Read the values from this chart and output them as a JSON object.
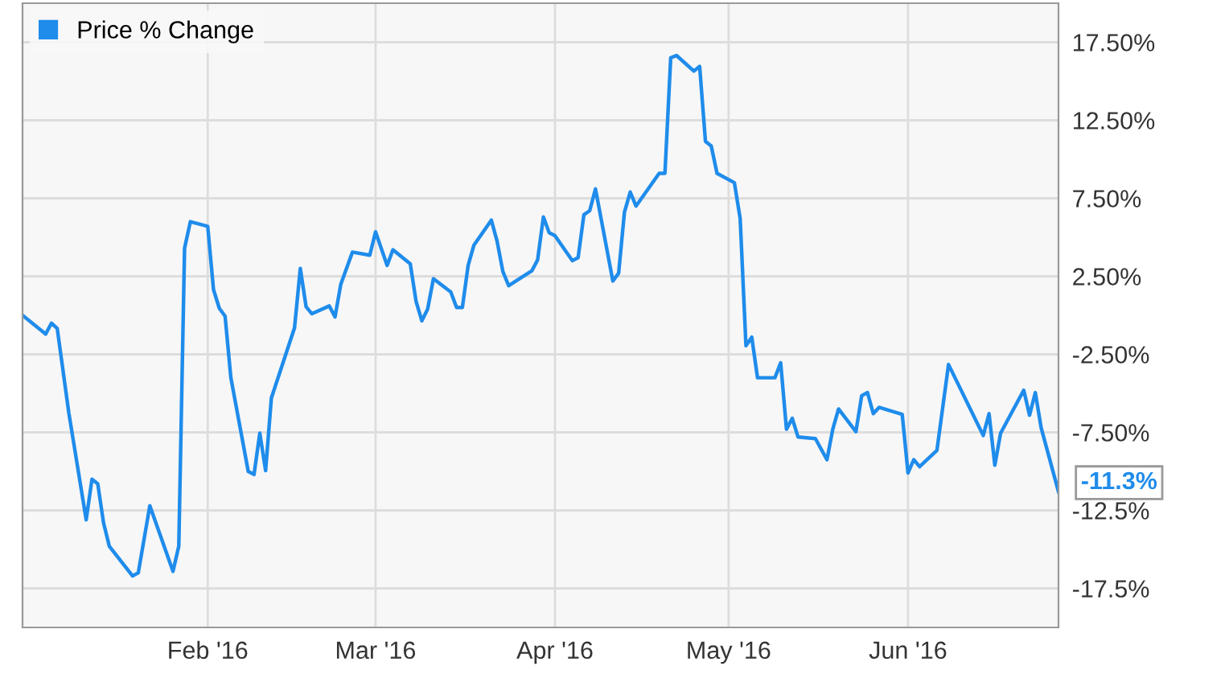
{
  "chart_data": {
    "type": "line",
    "series": [
      {
        "name": "Price % Change",
        "color": "#1f8ceb",
        "x": [
          "2015-12-31",
          "2016-01-04",
          "2016-01-05",
          "2016-01-06",
          "2016-01-08",
          "2016-01-11",
          "2016-01-12",
          "2016-01-13",
          "2016-01-14",
          "2016-01-15",
          "2016-01-19",
          "2016-01-20",
          "2016-01-22",
          "2016-01-26",
          "2016-01-27",
          "2016-01-28",
          "2016-01-29",
          "2016-02-01",
          "2016-02-02",
          "2016-02-03",
          "2016-02-04",
          "2016-02-05",
          "2016-02-08",
          "2016-02-09",
          "2016-02-10",
          "2016-02-11",
          "2016-02-12",
          "2016-02-16",
          "2016-02-17",
          "2016-02-18",
          "2016-02-19",
          "2016-02-22",
          "2016-02-23",
          "2016-02-24",
          "2016-02-26",
          "2016-02-29",
          "2016-03-01",
          "2016-03-03",
          "2016-03-04",
          "2016-03-07",
          "2016-03-08",
          "2016-03-09",
          "2016-03-10",
          "2016-03-11",
          "2016-03-14",
          "2016-03-15",
          "2016-03-16",
          "2016-03-17",
          "2016-03-18",
          "2016-03-21",
          "2016-03-22",
          "2016-03-23",
          "2016-03-24",
          "2016-03-28",
          "2016-03-29",
          "2016-03-30",
          "2016-03-31",
          "2016-04-01",
          "2016-04-04",
          "2016-04-05",
          "2016-04-06",
          "2016-04-07",
          "2016-04-08",
          "2016-04-11",
          "2016-04-12",
          "2016-04-13",
          "2016-04-14",
          "2016-04-15",
          "2016-04-19",
          "2016-04-20",
          "2016-04-21",
          "2016-04-22",
          "2016-04-25",
          "2016-04-26",
          "2016-04-27",
          "2016-04-28",
          "2016-04-29",
          "2016-05-02",
          "2016-05-03",
          "2016-05-04",
          "2016-05-05",
          "2016-05-06",
          "2016-05-09",
          "2016-05-10",
          "2016-05-11",
          "2016-05-12",
          "2016-05-13",
          "2016-05-16",
          "2016-05-18",
          "2016-05-19",
          "2016-05-20",
          "2016-05-23",
          "2016-05-24",
          "2016-05-25",
          "2016-05-26",
          "2016-05-27",
          "2016-05-31",
          "2016-06-01",
          "2016-06-02",
          "2016-06-03",
          "2016-06-06",
          "2016-06-08",
          "2016-06-14",
          "2016-06-15",
          "2016-06-16",
          "2016-06-17",
          "2016-06-21",
          "2016-06-22",
          "2016-06-23",
          "2016-06-24",
          "2016-06-27"
        ],
        "values": [
          0.0,
          -1.2,
          -0.5,
          -0.85,
          -6.25,
          -13.1,
          -10.5,
          -10.8,
          -13.3,
          -14.8,
          -16.7,
          -16.5,
          -12.2,
          -16.4,
          -14.8,
          4.3,
          6.0,
          5.7,
          1.65,
          0.45,
          -0.05,
          -4.0,
          -10.0,
          -10.2,
          -7.55,
          -9.95,
          -5.3,
          -0.8,
          3.0,
          0.55,
          0.1,
          0.6,
          -0.1,
          2.0,
          4.05,
          3.85,
          5.35,
          3.2,
          4.2,
          3.3,
          0.9,
          -0.35,
          0.4,
          2.35,
          1.5,
          0.5,
          0.5,
          3.2,
          4.5,
          6.1,
          4.75,
          2.8,
          1.9,
          2.85,
          3.55,
          6.3,
          5.3,
          5.1,
          3.5,
          3.7,
          6.45,
          6.7,
          8.1,
          2.2,
          2.7,
          6.6,
          7.9,
          7.0,
          9.1,
          9.1,
          16.5,
          16.65,
          15.65,
          15.95,
          11.15,
          10.85,
          9.1,
          8.5,
          6.2,
          -1.95,
          -1.4,
          -4.0,
          -4.0,
          -3.05,
          -7.3,
          -6.6,
          -7.8,
          -7.9,
          -9.25,
          -7.3,
          -6.0,
          -7.45,
          -5.15,
          -4.95,
          -6.3,
          -5.9,
          -6.35,
          -10.1,
          -9.25,
          -9.7,
          -8.65,
          -3.15,
          -7.7,
          -6.3,
          -9.6,
          -7.55,
          -4.8,
          -6.4,
          -4.95,
          -7.2,
          -11.3
        ]
      }
    ],
    "xlim": [
      "2015-12-31",
      "2016-06-27"
    ],
    "xticks": [
      {
        "value": "2016-02-01",
        "label": "Feb '16"
      },
      {
        "value": "2016-03-01",
        "label": "Mar '16"
      },
      {
        "value": "2016-04-01",
        "label": "Apr '16"
      },
      {
        "value": "2016-05-01",
        "label": "May '16"
      },
      {
        "value": "2016-06-01",
        "label": "Jun '16"
      }
    ],
    "ylim": [
      -20,
      20
    ],
    "yticks": [
      {
        "value": 17.5,
        "label": "17.50%"
      },
      {
        "value": 12.5,
        "label": "12.50%"
      },
      {
        "value": 7.5,
        "label": "7.50%"
      },
      {
        "value": 2.5,
        "label": "2.50%"
      },
      {
        "value": -2.5,
        "label": "-2.50%"
      },
      {
        "value": -7.5,
        "label": "-7.50%"
      },
      {
        "value": -12.5,
        "label": "-12.5%"
      },
      {
        "value": -17.5,
        "label": "-17.5%"
      }
    ],
    "annotations": [
      {
        "text": "-11.3%",
        "x": "2016-06-27",
        "y": -11.3
      }
    ],
    "grid": true,
    "legend": "top left",
    "marker": "none",
    "line_style": "solid"
  }
}
